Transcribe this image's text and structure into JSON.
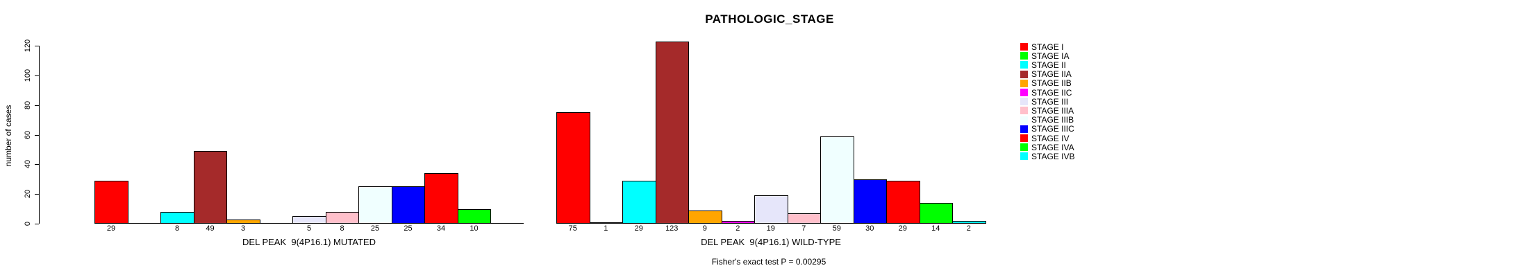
{
  "chart_data": {
    "type": "bar",
    "title": "PATHOLOGIC_STAGE",
    "ylabel": "number of cases",
    "ylim": [
      0,
      120
    ],
    "yticks": [
      0,
      20,
      40,
      60,
      80,
      100,
      120
    ],
    "grid": false,
    "legend_position": "right",
    "legend_entries": [
      {
        "label": "STAGE I",
        "color": "#FF0000"
      },
      {
        "label": "STAGE IA",
        "color": "#00FF00"
      },
      {
        "label": "STAGE II",
        "color": "#00FFFF"
      },
      {
        "label": "STAGE IIA",
        "color": "#A52A2A"
      },
      {
        "label": "STAGE IIB",
        "color": "#FFA500"
      },
      {
        "label": "STAGE IIC",
        "color": "#FF00FF"
      },
      {
        "label": "STAGE III",
        "color": "#E6E6FA"
      },
      {
        "label": "STAGE IIIA",
        "color": "#FFC0CB"
      },
      {
        "label": "STAGE IIIB",
        "color": "#F0FFFF"
      },
      {
        "label": "STAGE IIIC",
        "color": "#0000FF"
      },
      {
        "label": "STAGE IV",
        "color": "#FF0000"
      },
      {
        "label": "STAGE IVA",
        "color": "#00FF00"
      },
      {
        "label": "STAGE IVB",
        "color": "#00FFFF"
      }
    ],
    "categories": [
      "STAGE I",
      "STAGE IA",
      "STAGE II",
      "STAGE IIA",
      "STAGE IIB",
      "STAGE IIC",
      "STAGE III",
      "STAGE IIIA",
      "STAGE IIIB",
      "STAGE IIIC",
      "STAGE IV",
      "STAGE IVA",
      "STAGE IVB"
    ],
    "groups": [
      {
        "label": "DEL PEAK  9(4P16.1) MUTATED",
        "values": [
          29,
          0,
          8,
          49,
          3,
          0,
          5,
          8,
          25,
          25,
          34,
          10,
          0
        ]
      },
      {
        "label": "DEL PEAK  9(4P16.1) WILD-TYPE",
        "values": [
          75,
          1,
          29,
          123,
          9,
          2,
          19,
          7,
          59,
          30,
          29,
          14,
          2
        ]
      }
    ],
    "bar_value_labels": "counts shown below each bar; zero-count bars omitted",
    "annotation": "Fisher's exact test P = 0.00295"
  }
}
